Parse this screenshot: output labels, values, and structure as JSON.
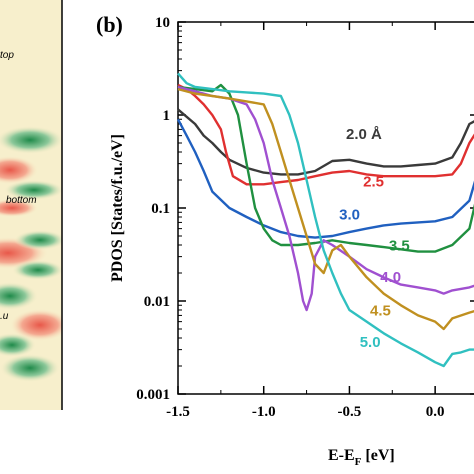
{
  "left_panel": {
    "labels": [
      "top",
      "bottom",
      ".u"
    ]
  },
  "chart_data": {
    "type": "line",
    "panel_label": "(b)",
    "xlabel": "E-E",
    "xlabel_subscript": "F",
    "xlabel_unit": " [eV]",
    "ylabel": "PDOS [States/f.u./eV]",
    "xlim": [
      -1.5,
      0.25
    ],
    "ylim": [
      0.001,
      10
    ],
    "yscale": "log",
    "x_ticks": [
      -1.5,
      -1.0,
      -0.5,
      0.0
    ],
    "x_tick_labels": [
      "-1.5",
      "-1.0",
      "-0.5",
      "0.0"
    ],
    "y_ticks": [
      0.001,
      0.01,
      0.1,
      1,
      10
    ],
    "y_tick_labels": [
      "0.001",
      "0.01",
      "0.1",
      "1",
      "10"
    ],
    "series": [
      {
        "name": "2.0 Å",
        "color": "#3a3a3a",
        "x": [
          -1.5,
          -1.4,
          -1.35,
          -1.3,
          -1.25,
          -1.2,
          -1.1,
          -1.0,
          -0.9,
          -0.8,
          -0.7,
          -0.6,
          -0.5,
          -0.4,
          -0.3,
          -0.2,
          -0.1,
          0.0,
          0.1,
          0.15,
          0.2,
          0.25
        ],
        "y": [
          1.15,
          0.8,
          0.6,
          0.5,
          0.4,
          0.33,
          0.27,
          0.24,
          0.23,
          0.23,
          0.25,
          0.32,
          0.33,
          0.3,
          0.28,
          0.28,
          0.29,
          0.3,
          0.35,
          0.5,
          0.8,
          0.9
        ]
      },
      {
        "name": "2.5",
        "color": "#e03030",
        "x": [
          -1.5,
          -1.45,
          -1.4,
          -1.35,
          -1.3,
          -1.25,
          -1.22,
          -1.18,
          -1.1,
          -1.0,
          -0.9,
          -0.8,
          -0.7,
          -0.6,
          -0.5,
          -0.4,
          -0.3,
          -0.2,
          -0.1,
          0.0,
          0.1,
          0.15,
          0.2,
          0.25
        ],
        "y": [
          2.1,
          1.9,
          1.6,
          1.3,
          1.0,
          0.7,
          0.4,
          0.22,
          0.18,
          0.18,
          0.19,
          0.2,
          0.22,
          0.24,
          0.25,
          0.23,
          0.22,
          0.22,
          0.22,
          0.22,
          0.23,
          0.3,
          0.5,
          0.7
        ]
      },
      {
        "name": "3.0",
        "color": "#2060c0",
        "x": [
          -1.5,
          -1.45,
          -1.4,
          -1.35,
          -1.3,
          -1.2,
          -1.1,
          -1.0,
          -0.9,
          -0.8,
          -0.7,
          -0.6,
          -0.5,
          -0.4,
          -0.3,
          -0.2,
          -0.1,
          0.0,
          0.1,
          0.2,
          0.25
        ],
        "y": [
          0.9,
          0.6,
          0.4,
          0.25,
          0.15,
          0.1,
          0.08,
          0.065,
          0.055,
          0.05,
          0.048,
          0.05,
          0.055,
          0.06,
          0.065,
          0.068,
          0.07,
          0.072,
          0.08,
          0.12,
          0.25
        ]
      },
      {
        "name": "3.5",
        "color": "#209040",
        "x": [
          -1.5,
          -1.4,
          -1.3,
          -1.25,
          -1.2,
          -1.15,
          -1.1,
          -1.05,
          -1.0,
          -0.95,
          -0.9,
          -0.8,
          -0.7,
          -0.6,
          -0.5,
          -0.4,
          -0.3,
          -0.2,
          -0.1,
          0.0,
          0.1,
          0.2,
          0.25
        ],
        "y": [
          2.0,
          1.9,
          1.8,
          2.1,
          1.7,
          1.0,
          0.3,
          0.1,
          0.06,
          0.045,
          0.04,
          0.04,
          0.042,
          0.045,
          0.042,
          0.04,
          0.038,
          0.036,
          0.034,
          0.034,
          0.04,
          0.06,
          0.15
        ]
      },
      {
        "name": "4.0",
        "color": "#a050d0",
        "x": [
          -1.5,
          -1.4,
          -1.3,
          -1.2,
          -1.1,
          -1.05,
          -1.0,
          -0.95,
          -0.9,
          -0.85,
          -0.8,
          -0.77,
          -0.75,
          -0.72,
          -0.7,
          -0.65,
          -0.6,
          -0.5,
          -0.4,
          -0.3,
          -0.2,
          -0.1,
          0.0,
          0.05,
          0.1,
          0.2,
          0.25
        ],
        "y": [
          2.0,
          1.8,
          1.6,
          1.5,
          1.3,
          0.9,
          0.5,
          0.2,
          0.1,
          0.05,
          0.02,
          0.01,
          0.008,
          0.012,
          0.03,
          0.045,
          0.04,
          0.03,
          0.022,
          0.018,
          0.015,
          0.014,
          0.013,
          0.012,
          0.013,
          0.014,
          0.015
        ]
      },
      {
        "name": "4.5",
        "color": "#c09020",
        "x": [
          -1.5,
          -1.4,
          -1.3,
          -1.2,
          -1.1,
          -1.0,
          -0.95,
          -0.9,
          -0.85,
          -0.8,
          -0.75,
          -0.7,
          -0.65,
          -0.6,
          -0.55,
          -0.5,
          -0.4,
          -0.3,
          -0.2,
          -0.1,
          0.0,
          0.05,
          0.1,
          0.2,
          0.25
        ],
        "y": [
          1.9,
          1.7,
          1.6,
          1.5,
          1.4,
          1.3,
          0.8,
          0.4,
          0.2,
          0.1,
          0.05,
          0.025,
          0.02,
          0.035,
          0.04,
          0.03,
          0.018,
          0.012,
          0.009,
          0.007,
          0.006,
          0.005,
          0.0065,
          0.0075,
          0.008
        ]
      },
      {
        "name": "5.0",
        "color": "#30c0c0",
        "x": [
          -1.5,
          -1.45,
          -1.4,
          -1.3,
          -1.2,
          -1.1,
          -1.0,
          -0.9,
          -0.85,
          -0.8,
          -0.75,
          -0.7,
          -0.65,
          -0.6,
          -0.55,
          -0.5,
          -0.4,
          -0.3,
          -0.2,
          -0.1,
          0.0,
          0.05,
          0.1,
          0.15,
          0.2,
          0.25
        ],
        "y": [
          2.8,
          2.2,
          2.0,
          1.9,
          1.8,
          1.75,
          1.7,
          1.6,
          1.0,
          0.5,
          0.2,
          0.08,
          0.035,
          0.02,
          0.012,
          0.008,
          0.006,
          0.0045,
          0.0035,
          0.0028,
          0.0022,
          0.002,
          0.0027,
          0.0028,
          0.003,
          0.003
        ]
      }
    ],
    "curve_labels": [
      {
        "text": "2.0 Å",
        "series": 0
      },
      {
        "text": "2.5",
        "series": 1
      },
      {
        "text": "3.0",
        "series": 2
      },
      {
        "text": "3.5",
        "series": 3
      },
      {
        "text": "4.0",
        "series": 4
      },
      {
        "text": "4.5",
        "series": 5
      },
      {
        "text": "5.0",
        "series": 6
      }
    ]
  }
}
